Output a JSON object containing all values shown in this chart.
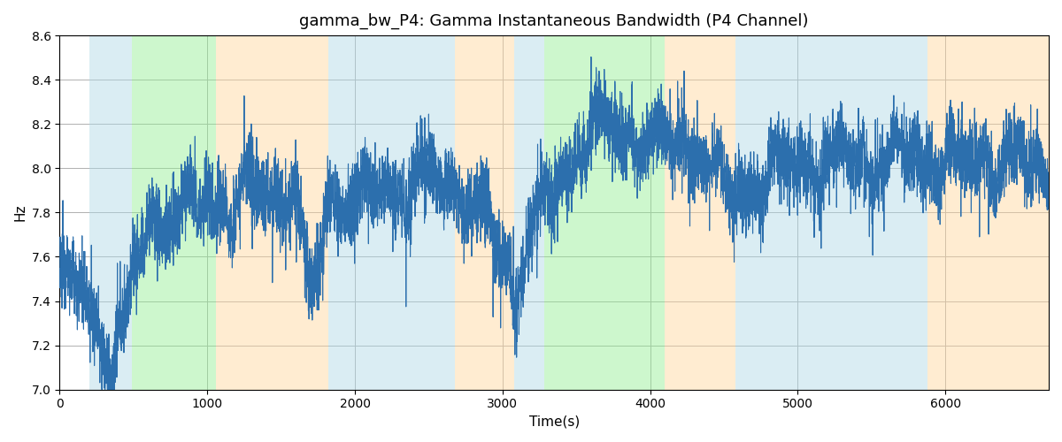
{
  "title": "gamma_bw_P4: Gamma Instantaneous Bandwidth (P4 Channel)",
  "xlabel": "Time(s)",
  "ylabel": "Hz",
  "ylim": [
    7.0,
    8.6
  ],
  "xlim": [
    0,
    6700
  ],
  "line_color": "#2c6fad",
  "line_width": 0.8,
  "background_color": "#ffffff",
  "grid_color": "#b0b0b0",
  "bands": [
    {
      "xmin": 200,
      "xmax": 490,
      "color": "#add8e6",
      "alpha": 0.45
    },
    {
      "xmin": 490,
      "xmax": 1060,
      "color": "#90ee90",
      "alpha": 0.45
    },
    {
      "xmin": 1060,
      "xmax": 1820,
      "color": "#ffd59a",
      "alpha": 0.45
    },
    {
      "xmin": 1820,
      "xmax": 2680,
      "color": "#add8e6",
      "alpha": 0.45
    },
    {
      "xmin": 2680,
      "xmax": 3080,
      "color": "#ffd59a",
      "alpha": 0.45
    },
    {
      "xmin": 3080,
      "xmax": 3280,
      "color": "#add8e6",
      "alpha": 0.45
    },
    {
      "xmin": 3280,
      "xmax": 4100,
      "color": "#90ee90",
      "alpha": 0.45
    },
    {
      "xmin": 4100,
      "xmax": 4580,
      "color": "#ffd59a",
      "alpha": 0.45
    },
    {
      "xmin": 4580,
      "xmax": 5880,
      "color": "#add8e6",
      "alpha": 0.45
    },
    {
      "xmin": 5880,
      "xmax": 6700,
      "color": "#ffd59a",
      "alpha": 0.45
    }
  ],
  "seed": 12345,
  "n_points": 6700,
  "ytick_labels": [
    "7.0",
    "7.2",
    "7.4",
    "7.6",
    "7.8",
    "8.0",
    "8.2",
    "8.4",
    "8.6"
  ],
  "ytick_values": [
    7.0,
    7.2,
    7.4,
    7.6,
    7.8,
    8.0,
    8.2,
    8.4,
    8.6
  ],
  "xtick_values": [
    0,
    1000,
    2000,
    3000,
    4000,
    5000,
    6000
  ]
}
